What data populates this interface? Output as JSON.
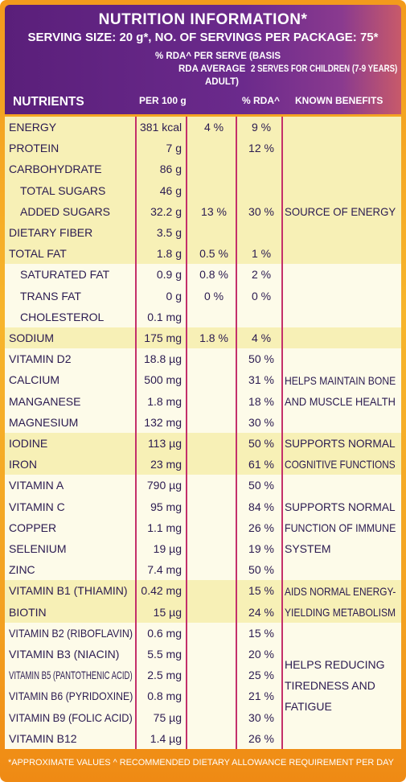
{
  "header": {
    "title": "NUTRITION INFORMATION*",
    "serving": "SERVING SIZE: 20 g*, NO. OF SERVINGS PER PACKAGE: 75*",
    "rda_basis": "% RDA^ PER SERVE (BASIS",
    "col_adult_line1": "RDA AVERAGE",
    "col_adult_line2": "ADULT)",
    "col_children": "2 SERVES FOR CHILDREN (7-9 YEARS)",
    "col_nutrients": "NUTRIENTS",
    "col_per100": "PER 100 g",
    "col_rda": "% RDA^",
    "col_benefits": "KNOWN BENEFITS"
  },
  "rows": [
    {
      "name": "ENERGY",
      "per100": "381 kcal",
      "adult": "4 %",
      "child": "9 %",
      "indent": false
    },
    {
      "name": "PROTEIN",
      "per100": "7 g",
      "adult": "",
      "child": "12 %",
      "indent": false
    },
    {
      "name": "CARBOHYDRATE",
      "per100": "86 g",
      "adult": "",
      "child": "",
      "indent": false
    },
    {
      "name": "TOTAL SUGARS",
      "per100": "46 g",
      "adult": "",
      "child": "",
      "indent": true
    },
    {
      "name": "ADDED SUGARS",
      "per100": "32.2 g",
      "adult": "13 %",
      "child": "30 %",
      "indent": true
    },
    {
      "name": "DIETARY FIBER",
      "per100": "3.5 g",
      "adult": "",
      "child": "",
      "indent": false
    },
    {
      "name": "TOTAL FAT",
      "per100": "1.8 g",
      "adult": "0.5 %",
      "child": "1 %",
      "indent": false
    },
    {
      "name": "SATURATED FAT",
      "per100": "0.9 g",
      "adult": "0.8 %",
      "child": "2 %",
      "indent": true
    },
    {
      "name": "TRANS FAT",
      "per100": "0 g",
      "adult": "0 %",
      "child": "0 %",
      "indent": true
    },
    {
      "name": "CHOLESTEROL",
      "per100": "0.1 mg",
      "adult": "",
      "child": "",
      "indent": true
    },
    {
      "name": "SODIUM",
      "per100": "175 mg",
      "adult": "1.8 %",
      "child": "4 %",
      "indent": false
    },
    {
      "name": "VITAMIN D2",
      "per100": "18.8 µg",
      "adult": "",
      "child": "50 %",
      "indent": false
    },
    {
      "name": "CALCIUM",
      "per100": "500 mg",
      "adult": "",
      "child": "31 %",
      "indent": false
    },
    {
      "name": "MANGANESE",
      "per100": "1.8 mg",
      "adult": "",
      "child": "18 %",
      "indent": false
    },
    {
      "name": "MAGNESIUM",
      "per100": "132 mg",
      "adult": "",
      "child": "30 %",
      "indent": false
    },
    {
      "name": "IODINE",
      "per100": "113 µg",
      "adult": "",
      "child": "50 %",
      "indent": false
    },
    {
      "name": "IRON",
      "per100": "23 mg",
      "adult": "",
      "child": "61 %",
      "indent": false
    },
    {
      "name": "VITAMIN A",
      "per100": "790 µg",
      "adult": "",
      "child": "50 %",
      "indent": false
    },
    {
      "name": "VITAMIN C",
      "per100": "95 mg",
      "adult": "",
      "child": "84 %",
      "indent": false
    },
    {
      "name": "COPPER",
      "per100": "1.1 mg",
      "adult": "",
      "child": "26 %",
      "indent": false
    },
    {
      "name": "SELENIUM",
      "per100": "19 µg",
      "adult": "",
      "child": "19 %",
      "indent": false
    },
    {
      "name": "ZINC",
      "per100": "7.4 mg",
      "adult": "",
      "child": "50 %",
      "indent": false
    },
    {
      "name": "VITAMIN B1 (THIAMIN)",
      "per100": "0.42 mg",
      "adult": "",
      "child": "15 %",
      "indent": false
    },
    {
      "name": "BIOTIN",
      "per100": "15 µg",
      "adult": "",
      "child": "24 %",
      "indent": false
    },
    {
      "name": "VITAMIN B2 (RIBOFLAVIN)",
      "per100": "0.6 mg",
      "adult": "",
      "child": "15 %",
      "indent": false
    },
    {
      "name": "VITAMIN B3 (NIACIN)",
      "per100": "5.5 mg",
      "adult": "",
      "child": "20 %",
      "indent": false
    },
    {
      "name": "VITAMIN B5 (PANTOTHENIC ACID)",
      "per100": "2.5 mg",
      "adult": "",
      "child": "25 %",
      "indent": false
    },
    {
      "name": "VITAMIN B6 (PYRIDOXINE)",
      "per100": "0.8 mg",
      "adult": "",
      "child": "21 %",
      "indent": false
    },
    {
      "name": "VITAMIN B9 (FOLIC ACID)",
      "per100": "75 µg",
      "adult": "",
      "child": "30 %",
      "indent": false
    },
    {
      "name": "VITAMIN B12",
      "per100": "1.4 µg",
      "adult": "",
      "child": "26 %",
      "indent": false
    }
  ],
  "benefits": [
    {
      "start": 2,
      "end": 6,
      "lines": [
        "SOURCE OF ENERGY"
      ]
    },
    {
      "start": 11,
      "end": 14,
      "lines": [
        "HELPS MAINTAIN BONE",
        "AND MUSCLE HEALTH"
      ]
    },
    {
      "start": 15,
      "end": 16,
      "lines": [
        "SUPPORTS NORMAL",
        "COGNITIVE FUNCTIONS"
      ]
    },
    {
      "start": 17,
      "end": 21,
      "lines": [
        "SUPPORTS NORMAL",
        "FUNCTION OF IMMUNE",
        "SYSTEM"
      ]
    },
    {
      "start": 22,
      "end": 23,
      "lines": [
        "AIDS NORMAL ENERGY-",
        "YIELDING METABOLISM"
      ]
    },
    {
      "start": 24,
      "end": 29,
      "lines": [
        "HELPS REDUCING",
        "TIREDNESS AND",
        "FATIGUE"
      ]
    }
  ],
  "footer": "*APPROXIMATE VALUES   ^ RECOMMENDED DIETARY ALLOWANCE REQUIREMENT PER DAY",
  "colors": {
    "band_yellow": "#f7f0b6",
    "band_cream": "#fdfbe9",
    "text": "#2a1a50",
    "rule": "#c4306a",
    "header_purple": "#5a1f7a",
    "frame_orange": "#f39a1c"
  }
}
